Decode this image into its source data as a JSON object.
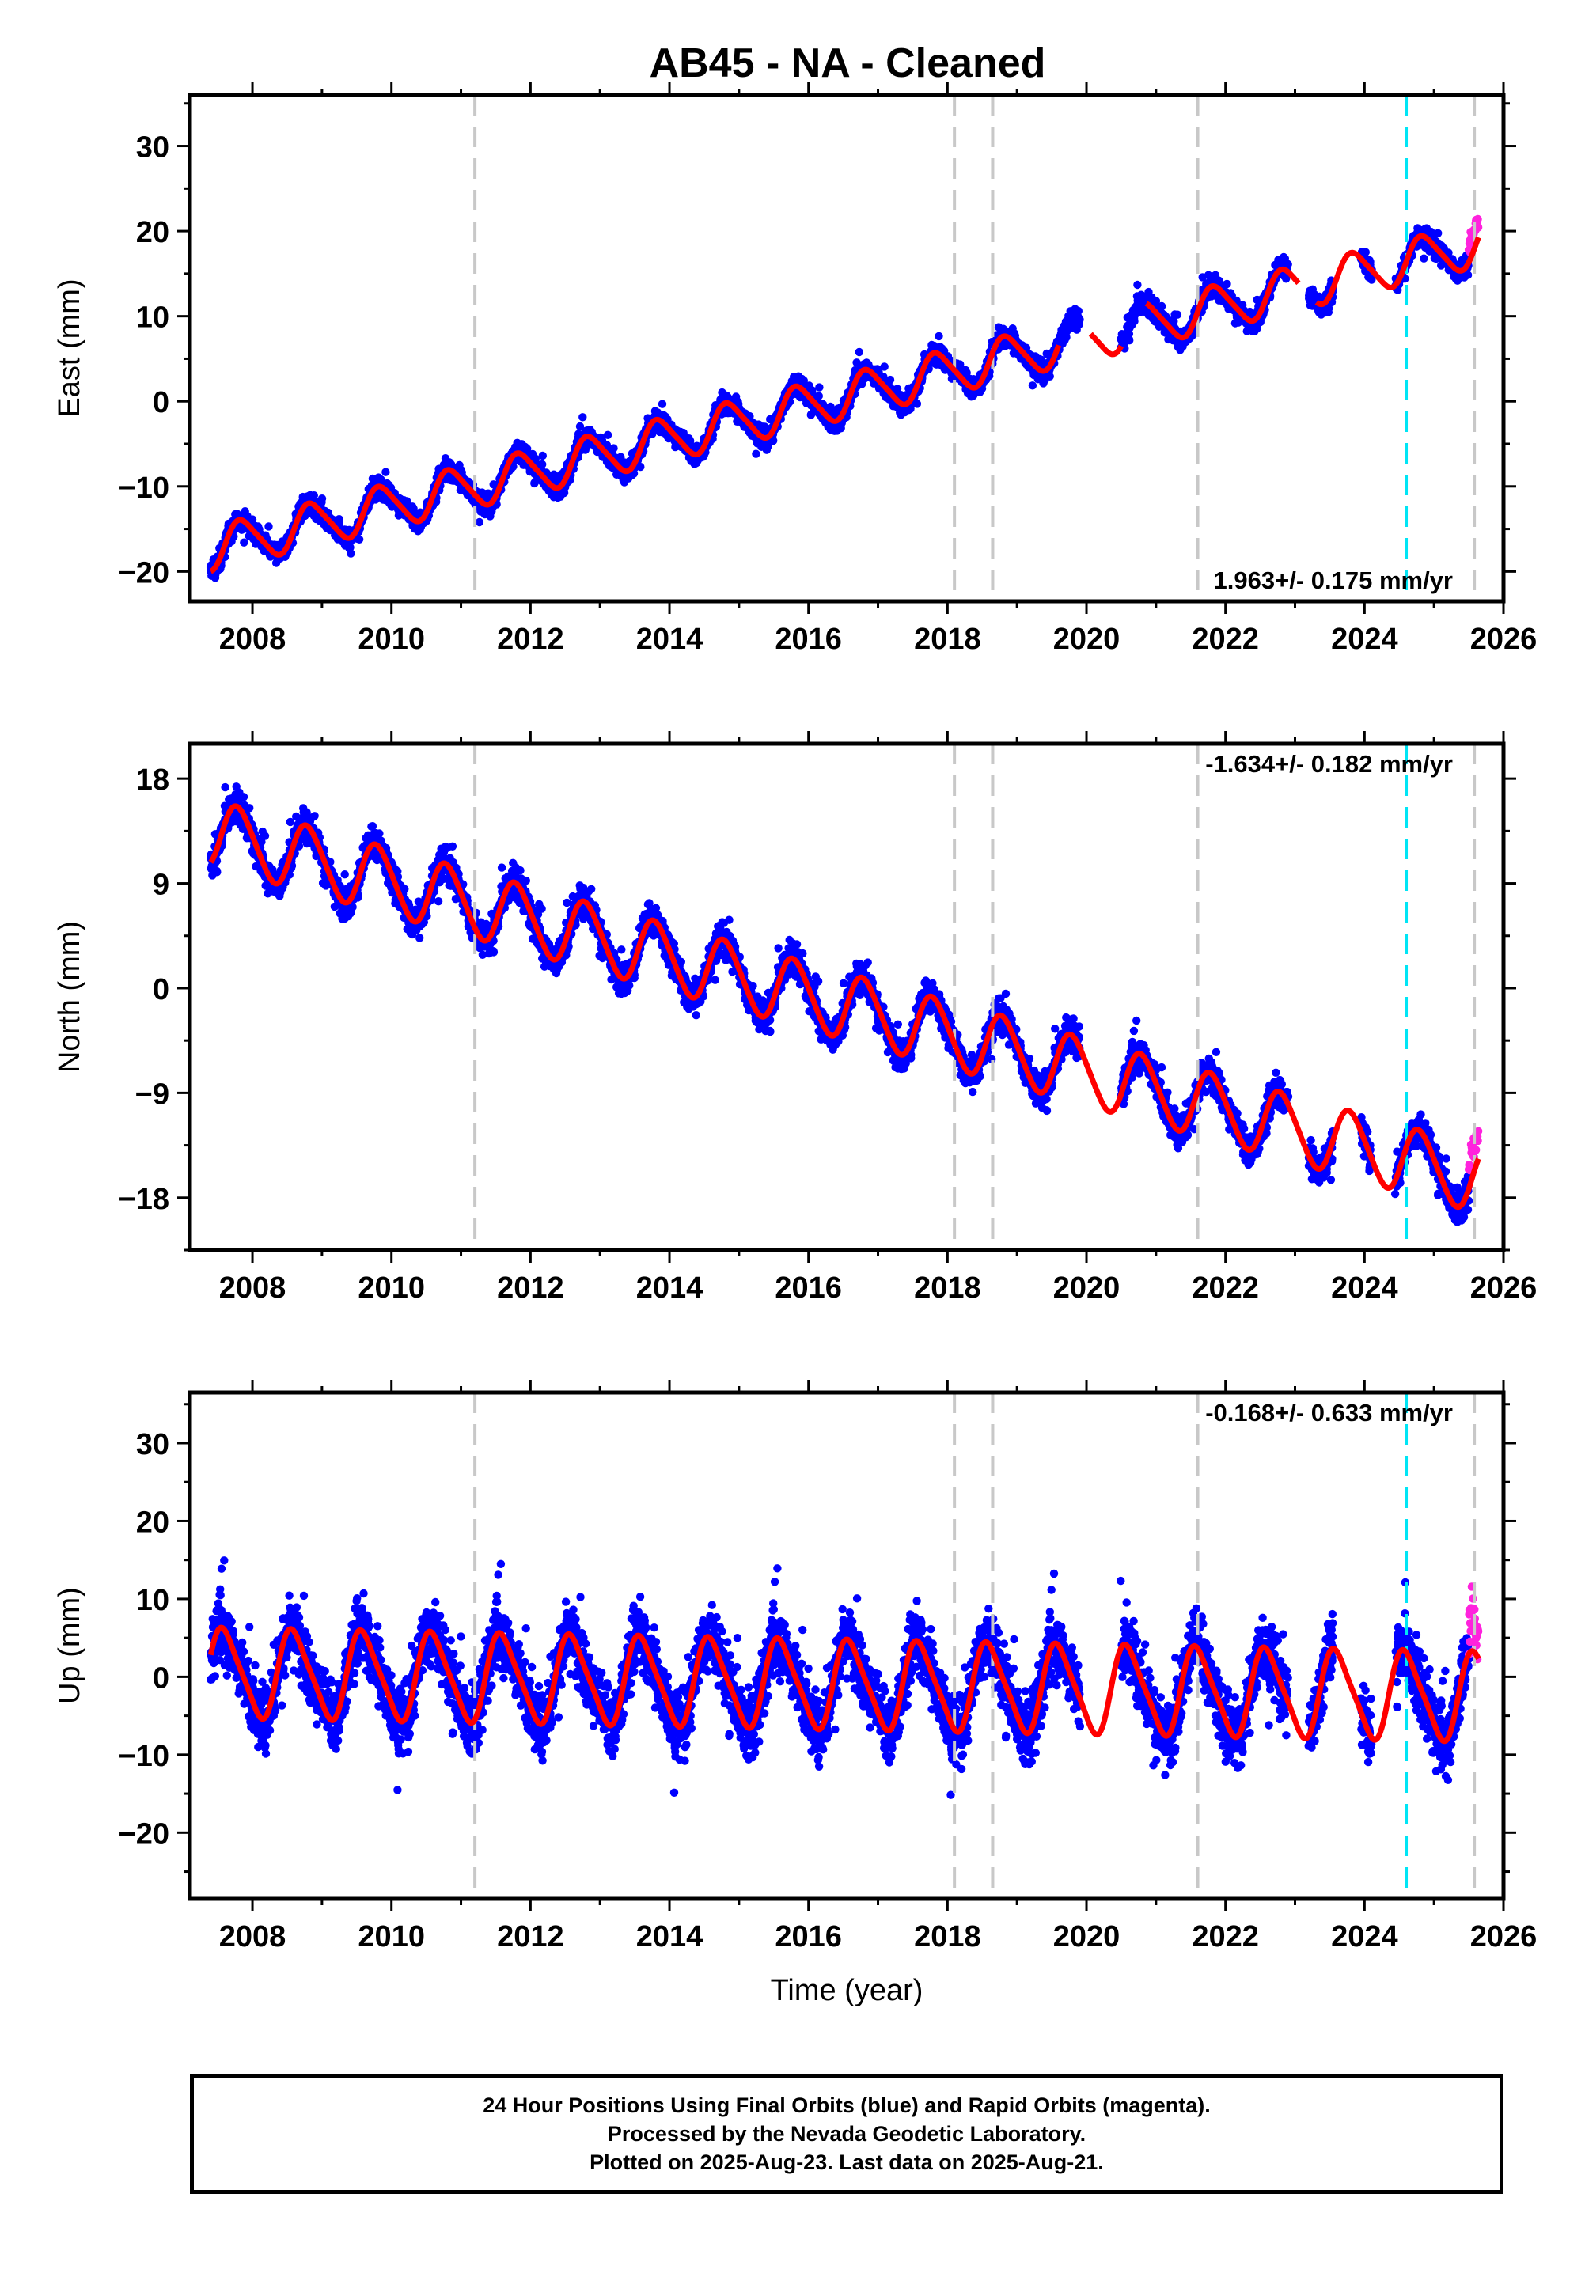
{
  "title": "AB45  - NA - Cleaned",
  "colors": {
    "final_orbits": "#0000ff",
    "rapid_orbits": "#ff22dd",
    "model_fit": "#ff0000",
    "event_lines": "#c8c8c8",
    "equipment_change_line": "#00e5f5"
  },
  "chart_data": [
    {
      "type": "scatter",
      "panel": "east",
      "ylabel": "East (mm)",
      "xlabel": "",
      "xlim": [
        2007.1,
        2026.0
      ],
      "ylim": [
        -23.5,
        36.0
      ],
      "xticks": [
        2008,
        2010,
        2012,
        2014,
        2016,
        2018,
        2020,
        2022,
        2024,
        2026
      ],
      "yticks": [
        -20,
        -10,
        0,
        10,
        20,
        30
      ],
      "velocity_label": "1.963+/- 0.175 mm/yr",
      "velocity_label_position": "bottom-right",
      "event_lines_years": [
        2011.2,
        2018.1,
        2018.65,
        2021.6,
        2025.58
      ],
      "cyan_line_year": 2024.6,
      "data_span": [
        2007.4,
        2025.64
      ],
      "rapid_span": [
        2025.5,
        2025.64
      ],
      "fit": {
        "trend_rate_mm_per_yr": 1.963,
        "anchor_year": 2016.5,
        "anchor_value": 0.5,
        "annual_amplitude": 2.5,
        "annual_phase": 0.6,
        "semiannual_amplitude": 0.4,
        "noise": 1.4
      },
      "fit_gaps": [
        [
          2019.6,
          2020.05
        ],
        [
          2020.5,
          2020.85
        ],
        [
          2023.05,
          2023.3
        ]
      ],
      "data_gaps": [
        [
          2019.9,
          2020.5
        ],
        [
          2022.9,
          2023.2
        ],
        [
          2023.55,
          2023.95
        ],
        [
          2024.1,
          2024.45
        ]
      ],
      "series": [
        {
          "name": "Final Orbits",
          "color": "#0000ff",
          "style": "dots"
        },
        {
          "name": "Rapid Orbits",
          "color": "#ff22dd",
          "style": "dots"
        },
        {
          "name": "Model fit",
          "color": "#ff0000",
          "style": "line"
        }
      ]
    },
    {
      "type": "scatter",
      "panel": "north",
      "ylabel": "North (mm)",
      "xlabel": "",
      "xlim": [
        2007.1,
        2026.0
      ],
      "ylim": [
        -22.5,
        21.0
      ],
      "xticks": [
        2008,
        2010,
        2012,
        2014,
        2016,
        2018,
        2020,
        2022,
        2024,
        2026
      ],
      "yticks": [
        -18,
        -9,
        0,
        9,
        18
      ],
      "velocity_label": "-1.634+/- 0.182 mm/yr",
      "velocity_label_position": "top-right",
      "event_lines_years": [
        2011.2,
        2018.1,
        2018.65,
        2021.6,
        2025.58
      ],
      "cyan_line_year": 2024.6,
      "data_span": [
        2007.4,
        2025.64
      ],
      "rapid_span": [
        2025.5,
        2025.64
      ],
      "fit": {
        "trend_rate_mm_per_yr": -1.634,
        "anchor_year": 2016.5,
        "anchor_value": -1.5,
        "annual_amplitude": 2.8,
        "annual_phase": 0.55,
        "semiannual_amplitude": 0.3,
        "noise": 1.6
      },
      "fit_gaps": [],
      "data_gaps": [
        [
          2019.9,
          2020.5
        ],
        [
          2022.9,
          2023.2
        ],
        [
          2023.55,
          2023.95
        ],
        [
          2024.1,
          2024.45
        ]
      ],
      "series": [
        {
          "name": "Final Orbits",
          "color": "#0000ff",
          "style": "dots"
        },
        {
          "name": "Rapid Orbits",
          "color": "#ff22dd",
          "style": "dots"
        },
        {
          "name": "Model fit",
          "color": "#ff0000",
          "style": "line"
        }
      ]
    },
    {
      "type": "scatter",
      "panel": "up",
      "ylabel": "Up (mm)",
      "xlabel": "Time (year)",
      "xlim": [
        2007.1,
        2026.0
      ],
      "ylim": [
        -28.5,
        36.5
      ],
      "xticks": [
        2008,
        2010,
        2012,
        2014,
        2016,
        2018,
        2020,
        2022,
        2024,
        2026
      ],
      "yticks": [
        -20,
        -10,
        0,
        10,
        20,
        30
      ],
      "velocity_label": "-0.168+/- 0.633 mm/yr",
      "velocity_label_position": "top-right",
      "event_lines_years": [
        2011.2,
        2018.1,
        2018.65,
        2021.6,
        2025.58
      ],
      "cyan_line_year": 2024.6,
      "data_span": [
        2007.4,
        2025.64
      ],
      "rapid_span": [
        2025.5,
        2025.64
      ],
      "fit": {
        "trend_rate_mm_per_yr": -0.168,
        "anchor_year": 2016.5,
        "anchor_value": -1.0,
        "annual_amplitude": 5.5,
        "annual_phase": 0.35,
        "semiannual_amplitude": 1.0,
        "noise": 5.0
      },
      "fit_gaps": [],
      "data_gaps": [
        [
          2019.9,
          2020.5
        ],
        [
          2022.9,
          2023.2
        ],
        [
          2023.55,
          2023.95
        ],
        [
          2024.1,
          2024.45
        ]
      ],
      "series": [
        {
          "name": "Final Orbits",
          "color": "#0000ff",
          "style": "dots"
        },
        {
          "name": "Rapid Orbits",
          "color": "#ff22dd",
          "style": "dots"
        },
        {
          "name": "Model fit",
          "color": "#ff0000",
          "style": "line"
        }
      ]
    }
  ],
  "caption": {
    "line1": "24 Hour Positions Using Final Orbits (blue) and Rapid Orbits (magenta).",
    "line2": "Processed by the Nevada Geodetic Laboratory.",
    "line3": "Plotted on 2025-Aug-23. Last data on 2025-Aug-21."
  }
}
